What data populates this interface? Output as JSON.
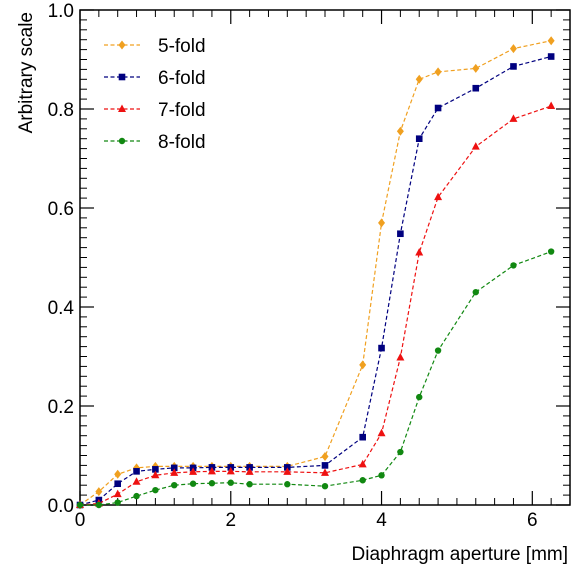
{
  "chart_data": {
    "type": "line",
    "title": "",
    "xlabel": "Diaphragm aperture [mm]",
    "ylabel": "Arbitrary scale",
    "xlim": [
      0,
      6.5
    ],
    "ylim": [
      0,
      1.0
    ],
    "x_ticks": [
      0,
      2,
      4,
      6
    ],
    "y_ticks": [
      0.0,
      0.2,
      0.4,
      0.6,
      0.8,
      1.0
    ],
    "x_tick_labels": [
      "0",
      "2",
      "4",
      "6"
    ],
    "y_tick_labels": [
      "0.0",
      "0.2",
      "0.4",
      "0.6",
      "0.8",
      "1.0"
    ],
    "grid": false,
    "legend_position": "top-left",
    "x": [
      0.0,
      0.25,
      0.5,
      0.75,
      1.0,
      1.25,
      1.5,
      1.75,
      2.0,
      2.25,
      2.75,
      3.25,
      3.75,
      4.0,
      4.25,
      4.5,
      4.75,
      5.25,
      5.75,
      6.25
    ],
    "series": [
      {
        "name": "5-fold",
        "color": "#f0a020",
        "marker": "diamond",
        "values": [
          0.0,
          0.027,
          0.062,
          0.075,
          0.078,
          0.078,
          0.078,
          0.078,
          0.078,
          0.078,
          0.078,
          0.098,
          0.283,
          0.57,
          0.755,
          0.86,
          0.875,
          0.882,
          0.922,
          0.938
        ]
      },
      {
        "name": "6-fold",
        "color": "#00007f",
        "marker": "square",
        "values": [
          0.0,
          0.01,
          0.043,
          0.068,
          0.072,
          0.075,
          0.075,
          0.076,
          0.076,
          0.076,
          0.076,
          0.08,
          0.137,
          0.317,
          0.548,
          0.74,
          0.802,
          0.842,
          0.886,
          0.906
        ]
      },
      {
        "name": "7-fold",
        "color": "#ee1111",
        "marker": "triangle",
        "values": [
          0.0,
          0.003,
          0.022,
          0.047,
          0.06,
          0.065,
          0.067,
          0.068,
          0.068,
          0.067,
          0.067,
          0.065,
          0.082,
          0.145,
          0.298,
          0.51,
          0.622,
          0.724,
          0.78,
          0.806
        ]
      },
      {
        "name": "8-fold",
        "color": "#118811",
        "marker": "circle",
        "values": [
          0.0,
          0.0,
          0.005,
          0.018,
          0.03,
          0.04,
          0.043,
          0.044,
          0.045,
          0.042,
          0.042,
          0.038,
          0.05,
          0.06,
          0.107,
          0.218,
          0.312,
          0.43,
          0.484,
          0.512
        ]
      }
    ]
  }
}
